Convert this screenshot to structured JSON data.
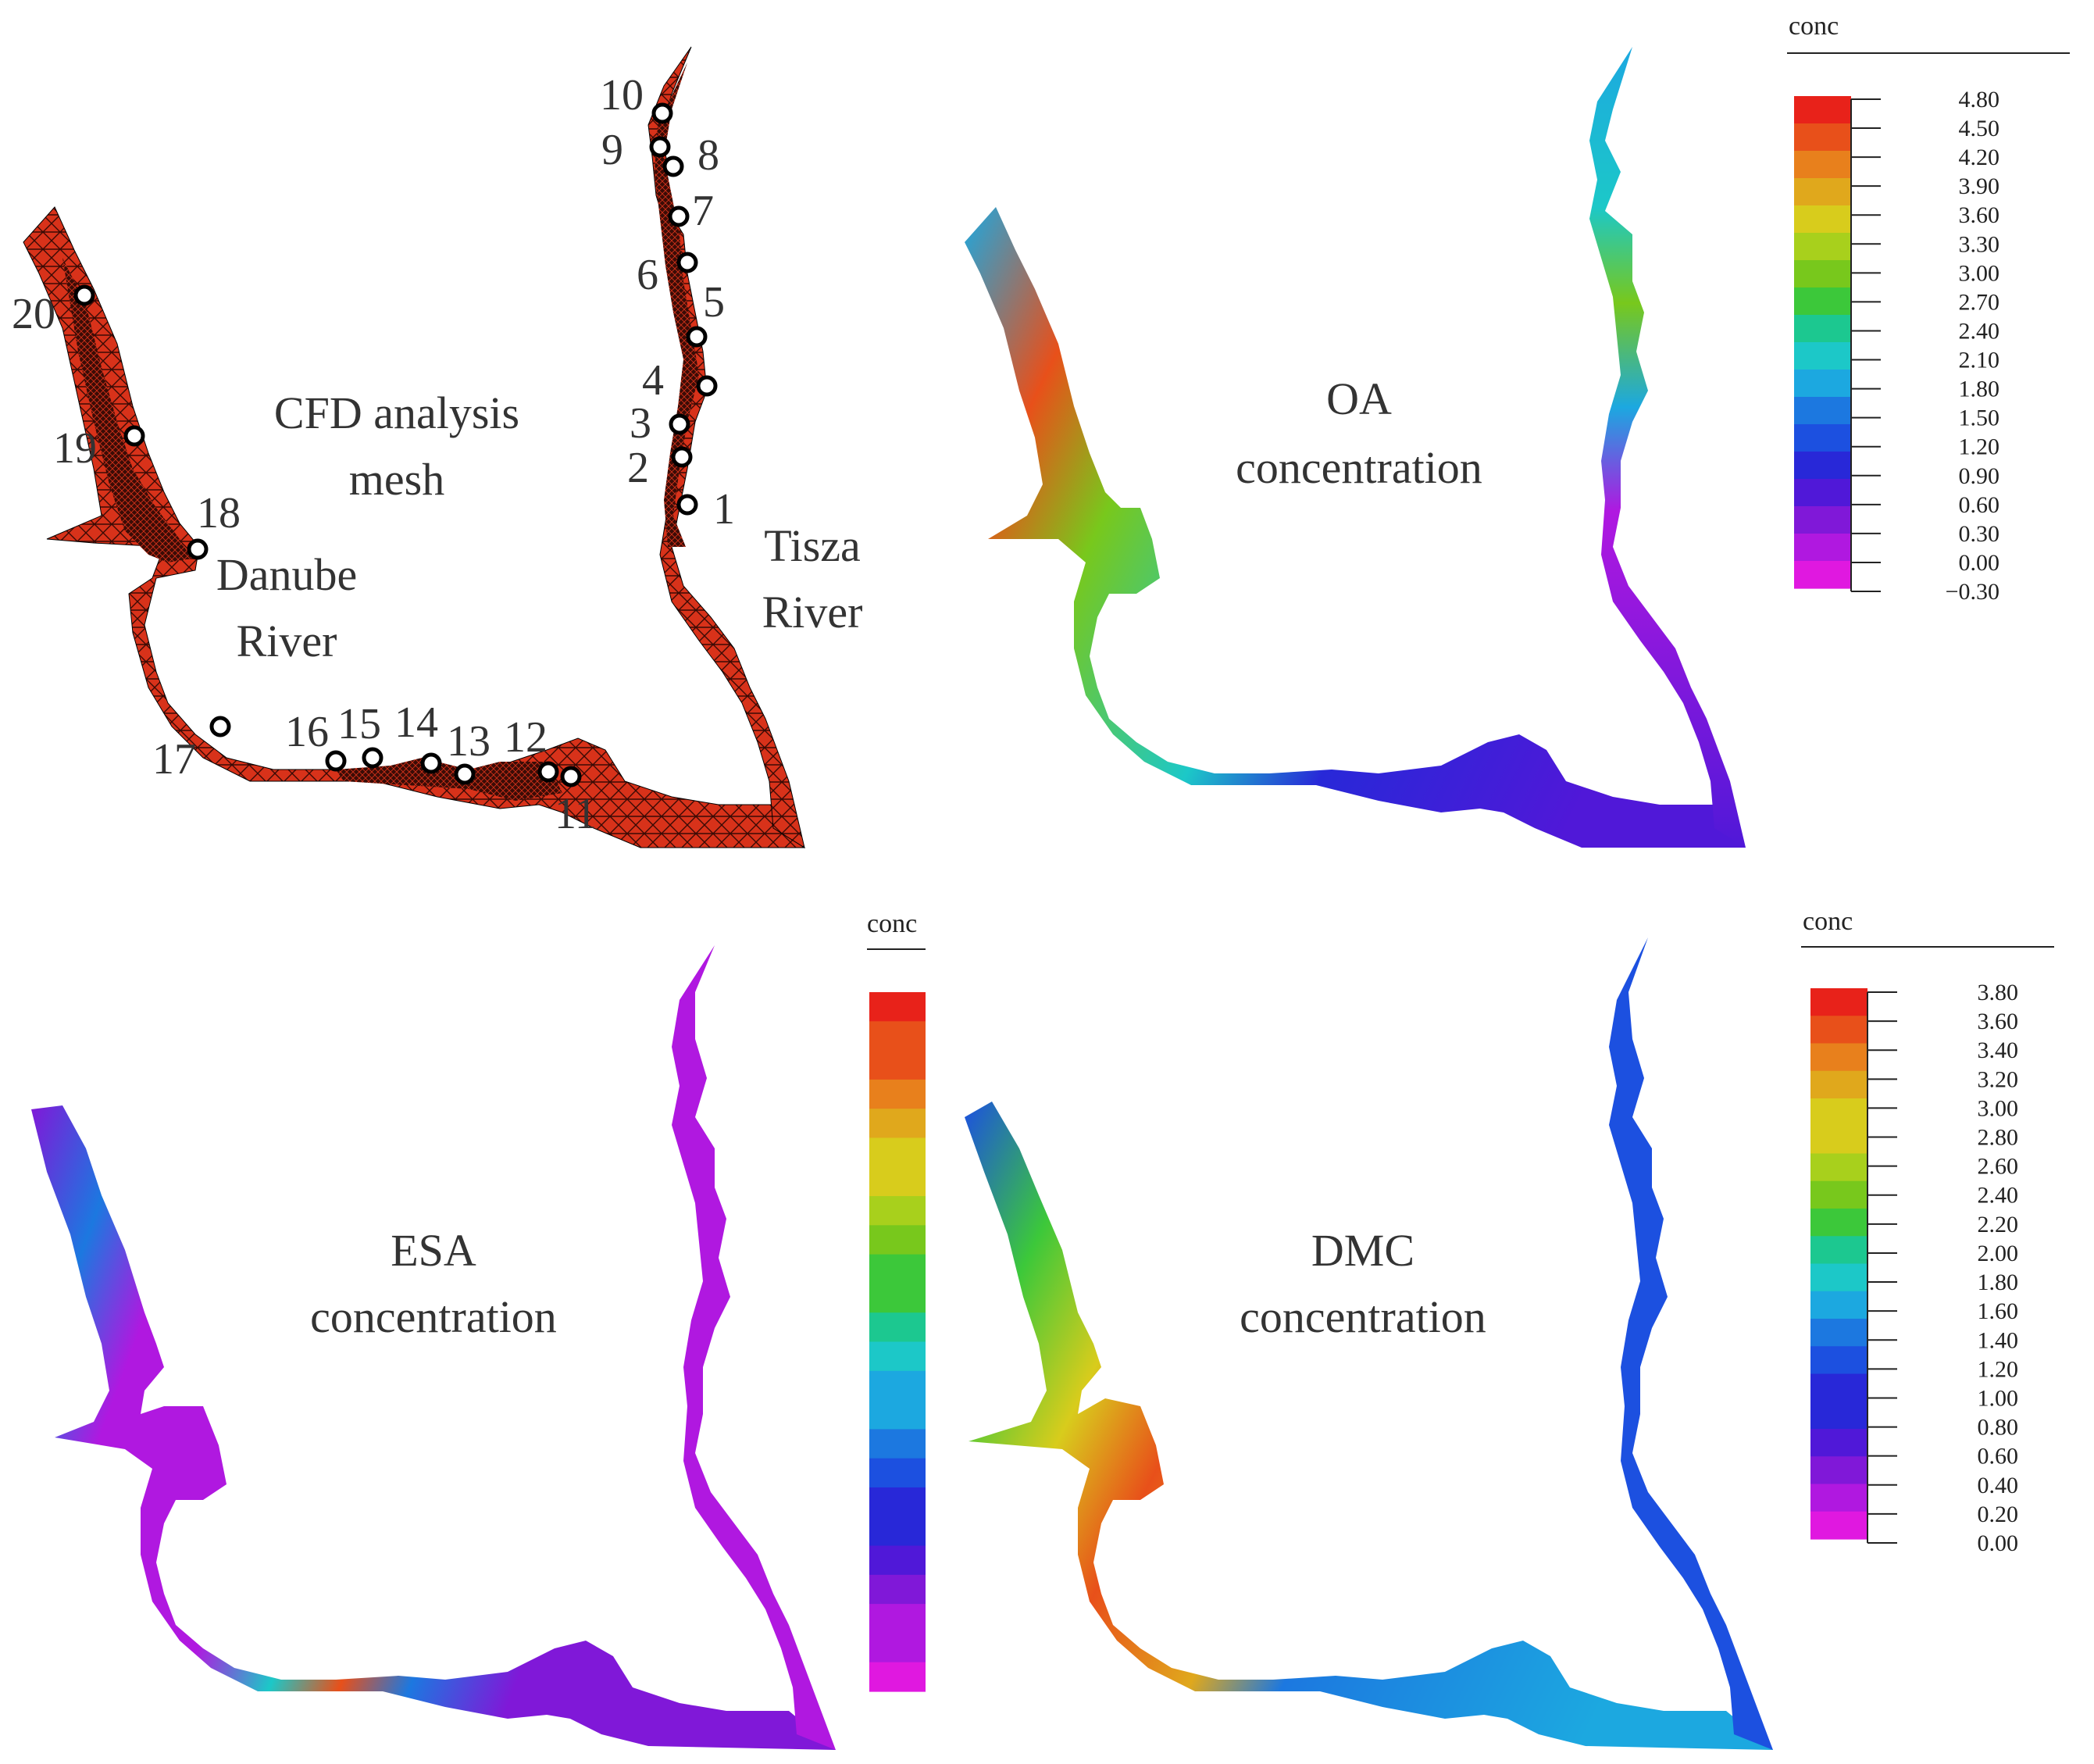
{
  "panels": {
    "mesh": {
      "title_line1": "CFD analysis",
      "title_line2": "mesh",
      "danube_label_line1": "Danube",
      "danube_label_line2": "River",
      "tisza_label_line1": "Tisza",
      "tisza_label_line2": "River",
      "points": [
        "1",
        "2",
        "3",
        "4",
        "5",
        "6",
        "7",
        "8",
        "9",
        "10",
        "11",
        "12",
        "13",
        "14",
        "15",
        "16",
        "17",
        "18",
        "19",
        "20"
      ]
    },
    "oa": {
      "title_line1": "OA",
      "title_line2": "concentration",
      "legend_title": "conc",
      "legend_ticks": [
        "4.80",
        "4.50",
        "4.20",
        "3.90",
        "3.60",
        "3.30",
        "3.00",
        "2.70",
        "2.40",
        "2.10",
        "1.80",
        "1.50",
        "1.20",
        "0.90",
        "0.60",
        "0.30",
        "0.00",
        "−0.30"
      ]
    },
    "esa": {
      "title_line1": "ESA",
      "title_line2": "concentration",
      "legend_title": "conc"
    },
    "dmc": {
      "title_line1": "DMC",
      "title_line2": "concentration",
      "legend_title": "conc",
      "legend_ticks": [
        "3.80",
        "3.60",
        "3.40",
        "3.20",
        "3.00",
        "2.80",
        "2.60",
        "2.40",
        "2.20",
        "2.00",
        "1.80",
        "1.60",
        "1.40",
        "1.20",
        "1.00",
        "0.80",
        "0.60",
        "0.40",
        "0.20",
        "0.00"
      ]
    }
  },
  "colors": {
    "mesh_fill": "#d8321a",
    "mesh_dense": "#2a0a05",
    "scale": [
      "#e8221a",
      "#e8501a",
      "#e8801c",
      "#e0a81c",
      "#d8cc1c",
      "#a8d01c",
      "#78c81c",
      "#3cc83a",
      "#1cc890",
      "#1cc8c8",
      "#1ca8e0",
      "#1c78e0",
      "#1c50e0",
      "#2828d8",
      "#5018d8",
      "#8018d8",
      "#b018e0",
      "#e018e0"
    ]
  }
}
